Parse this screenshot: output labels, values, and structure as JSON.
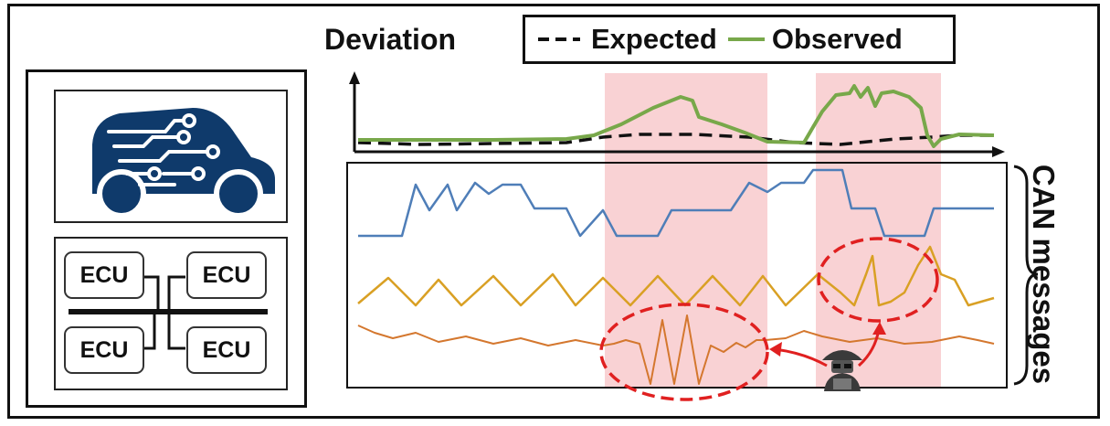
{
  "deviation_chart": {
    "title": "Deviation",
    "legend": {
      "expected_label": "Expected",
      "observed_label": "Observed"
    },
    "colors": {
      "expected": "#111111",
      "observed": "#78a84a",
      "highlight": "#f9d2d4"
    }
  },
  "can_panel": {
    "title": "CAN messages",
    "colors": {
      "signal_1": "#4f7eb8",
      "signal_2": "#d9a024",
      "signal_3": "#d4772e",
      "anomaly_circle": "#e02020",
      "attack_arrow": "#e02020"
    }
  },
  "vehicle": {
    "icon": "connected-car-icon",
    "color": "#0f3a6b"
  },
  "ecu_network": {
    "ecus": [
      "ECU",
      "ECU",
      "ECU",
      "ECU"
    ]
  },
  "attacker": {
    "icon": "hacker-icon"
  }
}
